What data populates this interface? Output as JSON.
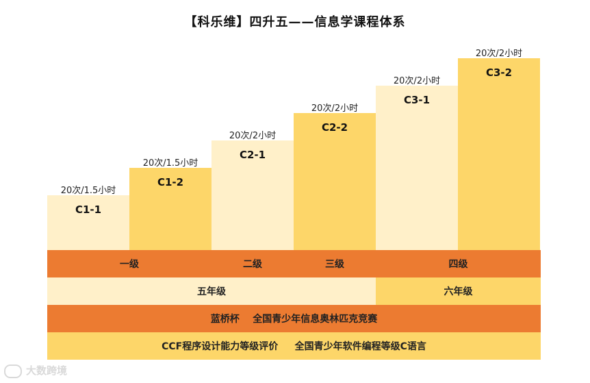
{
  "title": "【科乐维】四升五——信息学课程体系",
  "colors": {
    "light": "#fff0c9",
    "mid": "#fdd669",
    "orange": "#ec7b31"
  },
  "steps": [
    {
      "code": "C1-1",
      "label": "20次/1.5小时"
    },
    {
      "code": "C1-2",
      "label": "20次/1.5小时"
    },
    {
      "code": "C2-1",
      "label": "20次/2小时"
    },
    {
      "code": "C2-2",
      "label": "20次/2小时"
    },
    {
      "code": "C3-1",
      "label": "20次/2小时"
    },
    {
      "code": "C3-2",
      "label": "20次/2小时"
    }
  ],
  "levels": {
    "level1": "一级",
    "level2": "二级",
    "level3": "三级",
    "level4": "四级"
  },
  "grades": {
    "grade5": "五年级",
    "grade6": "六年级"
  },
  "competition": "蓝桥杯    全国青少年信息奥林匹克竞赛",
  "certification": "CCF程序设计能力等级评价     全国青少年软件编程等级C语言",
  "watermark": "大数跨境"
}
